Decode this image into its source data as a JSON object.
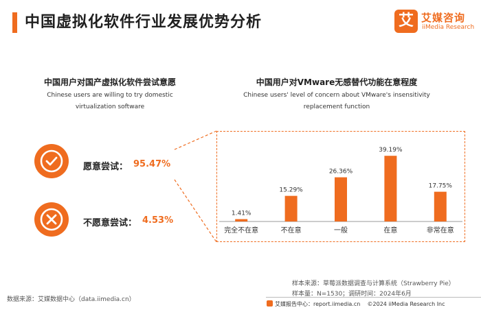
{
  "page_title": "中国虚拟化软件行业发展优势分析",
  "brand": {
    "logo_char": "艾",
    "name_cn": "艾媒咨询",
    "name_en": "iiMedia Research",
    "accent_color": "#ef6c1f"
  },
  "left_panel": {
    "title": "中国用户对国产虚拟化软件尝试意愿",
    "subtitle": "Chinese users are willing to try domestic virtualization software",
    "willing": {
      "icon": "check-icon",
      "label": "愿意尝试：",
      "value": "95.47%"
    },
    "unwilling": {
      "icon": "cross-icon",
      "label": "不愿意尝试：",
      "value": "4.53%"
    }
  },
  "right_panel": {
    "title": "中国用户对VMware无感替代功能在意程度",
    "subtitle": "Chinese users' level of concern about VMware's insensitivity replacement function"
  },
  "chart_data": {
    "type": "bar",
    "categories": [
      "完全不在意",
      "不在意",
      "一般",
      "在意",
      "非常在意"
    ],
    "values": [
      1.41,
      15.29,
      26.36,
      39.19,
      17.75
    ],
    "value_labels": [
      "1.41%",
      "15.29%",
      "26.36%",
      "39.19%",
      "17.75%"
    ],
    "bar_color": "#ef6c1f",
    "grid": false,
    "legend": "none",
    "ylim": [
      0,
      45
    ]
  },
  "notes": {
    "sample_source": "样本来源：草莓派数据调查与计算系统（Strawberry Pie）",
    "sample_size": "样本量：N=1530；调研时间：2024年6月"
  },
  "source": "数据来源：艾媒数据中心（data.iimedia.cn）",
  "footer": {
    "report_site": "艾媒报告中心：report.iimedia.cn",
    "copyright": "©2024  iiMedia Research  Inc"
  }
}
